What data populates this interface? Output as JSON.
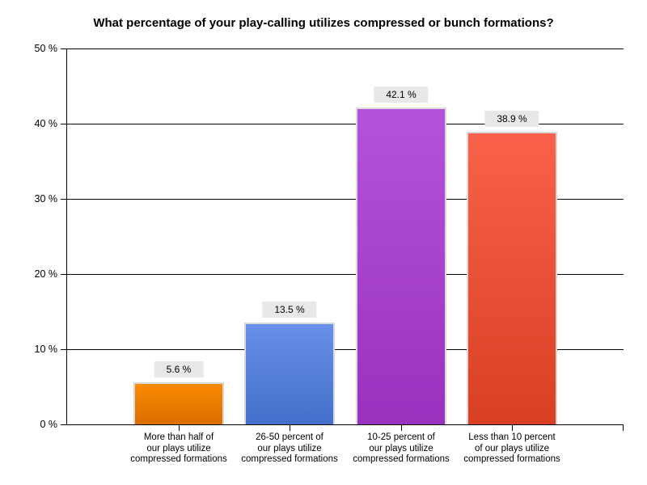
{
  "chart_data": {
    "type": "bar",
    "title": "What percentage of your play-calling utilizes compressed or bunch formations?",
    "categories": [
      [
        "More than half of",
        "our plays utilize",
        "compressed formations"
      ],
      [
        "26-50 percent of",
        "our plays utilize",
        "compressed formations"
      ],
      [
        "10-25 percent of",
        "our plays utilize",
        "compressed formations"
      ],
      [
        "Less than 10 percent",
        "of our plays utilize",
        "compressed formations"
      ]
    ],
    "values": [
      5.6,
      13.5,
      42.1,
      38.9
    ],
    "value_labels": [
      "5.6 %",
      "13.5 %",
      "42.1 %",
      "38.9 %"
    ],
    "xlabel": "",
    "ylabel": "",
    "ylim": [
      0,
      50
    ],
    "yticks": [
      0,
      10,
      20,
      30,
      40,
      50
    ],
    "ytick_labels": [
      "0 %",
      "10 %",
      "20 %",
      "30 %",
      "40 %",
      "50 %"
    ],
    "grid": true,
    "legend": false,
    "colors": {
      "bar_gradients": [
        {
          "top": "#fb8c00",
          "bottom": "#dc6e00"
        },
        {
          "top": "#6890e8",
          "bottom": "#4470cb"
        },
        {
          "top": "#b552db",
          "bottom": "#9932be"
        },
        {
          "top": "#f9614a",
          "bottom": "#d94023"
        }
      ],
      "bar_border": "#d9d9d9",
      "value_label_bg": "#e8e8e8",
      "axis": "#000000",
      "text": "#000000",
      "background": "#ffffff"
    }
  }
}
